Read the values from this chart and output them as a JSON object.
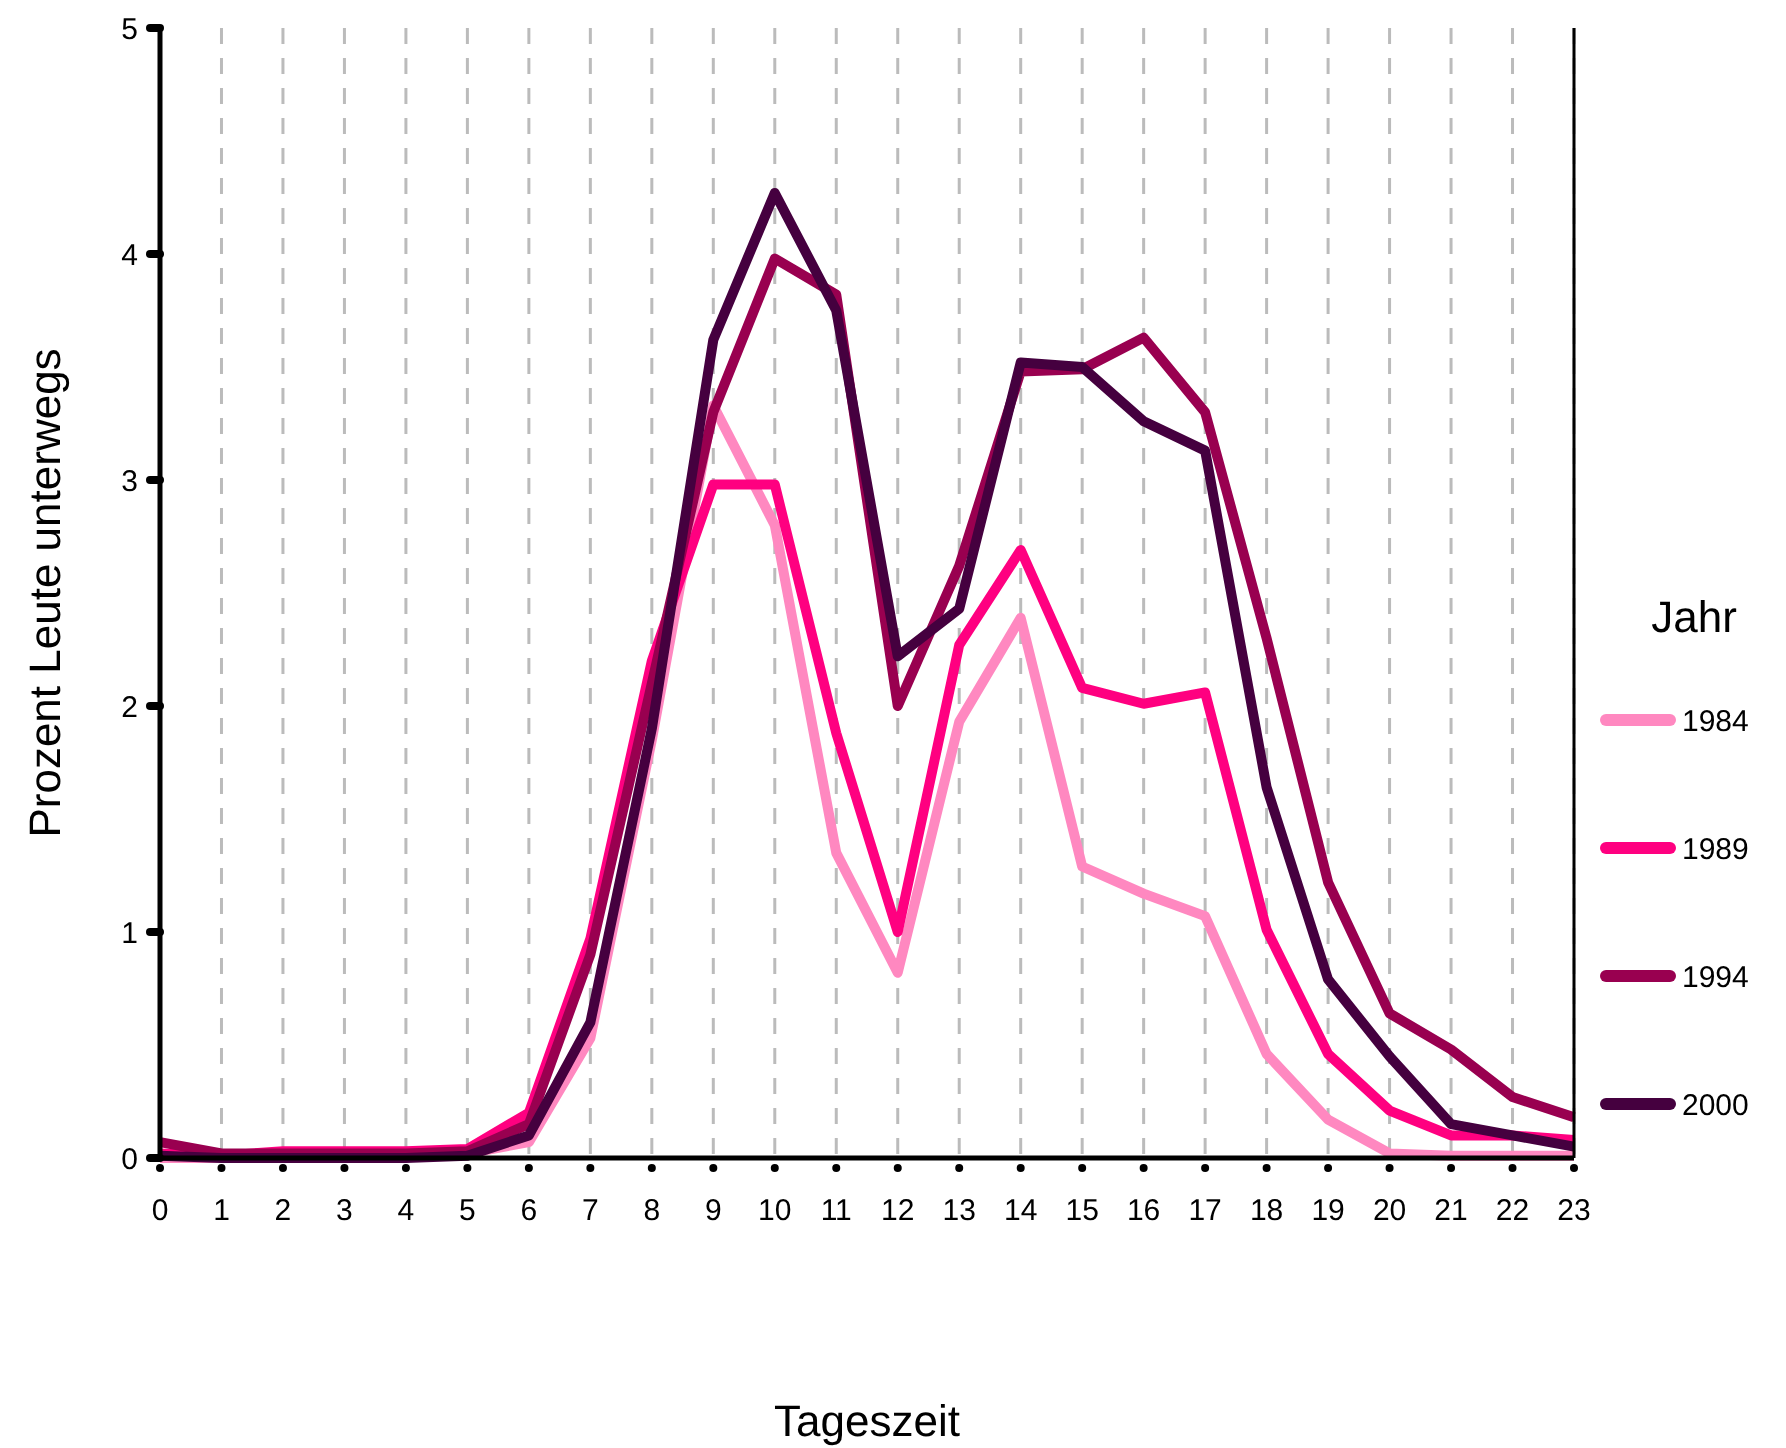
{
  "chart_data": {
    "type": "line",
    "xlabel": "Tageszeit",
    "ylabel": "Prozent Leute unterwegs",
    "legend_title": "Jahr",
    "legend": "right",
    "grid": "x",
    "line_style": "solid",
    "marker": "none",
    "x": [
      0,
      1,
      2,
      3,
      4,
      5,
      6,
      7,
      8,
      9,
      10,
      11,
      12,
      13,
      14,
      15,
      16,
      17,
      18,
      19,
      20,
      21,
      22,
      23
    ],
    "xlim": [
      0,
      23
    ],
    "xticks": [
      0,
      1,
      2,
      3,
      4,
      5,
      6,
      7,
      8,
      9,
      10,
      11,
      12,
      13,
      14,
      15,
      16,
      17,
      18,
      19,
      20,
      21,
      22,
      23
    ],
    "ylim": [
      0,
      5
    ],
    "yticks": [
      0,
      1,
      2,
      3,
      4,
      5
    ],
    "series": [
      {
        "name": "1984",
        "color": "#ff88c0",
        "values": [
          0,
          0,
          0,
          0,
          null,
          0.02,
          0.07,
          0.53,
          1.85,
          3.33,
          2.8,
          1.35,
          0.82,
          1.93,
          2.39,
          1.29,
          1.17,
          1.07,
          0.46,
          0.17,
          0.02,
          0.01,
          0.01,
          0.01
        ]
      },
      {
        "name": "1989",
        "color": "#ff0080",
        "values": [
          0.02,
          0.01,
          0.03,
          0.03,
          0.03,
          0.04,
          0.2,
          0.97,
          2.2,
          2.98,
          2.98,
          1.88,
          1.0,
          2.27,
          2.69,
          2.08,
          2.01,
          2.06,
          1.01,
          0.46,
          0.21,
          0.1,
          0.1,
          0.08
        ]
      },
      {
        "name": "1994",
        "color": "#990050",
        "values": [
          0.07,
          0.02,
          0.02,
          0.02,
          0.02,
          0.03,
          0.15,
          0.9,
          2.1,
          3.3,
          3.98,
          3.82,
          2.0,
          2.62,
          3.48,
          3.49,
          3.63,
          3.3,
          2.3,
          1.22,
          0.64,
          0.48,
          0.27,
          0.18
        ]
      },
      {
        "name": "2000",
        "color": "#45003f",
        "values": [
          0.01,
          0,
          0,
          0,
          0,
          0.01,
          0.1,
          0.6,
          1.9,
          3.62,
          4.27,
          3.75,
          2.22,
          2.43,
          3.52,
          3.5,
          3.26,
          3.13,
          1.64,
          0.79,
          0.45,
          0.15,
          0.1,
          0.05
        ]
      }
    ]
  }
}
